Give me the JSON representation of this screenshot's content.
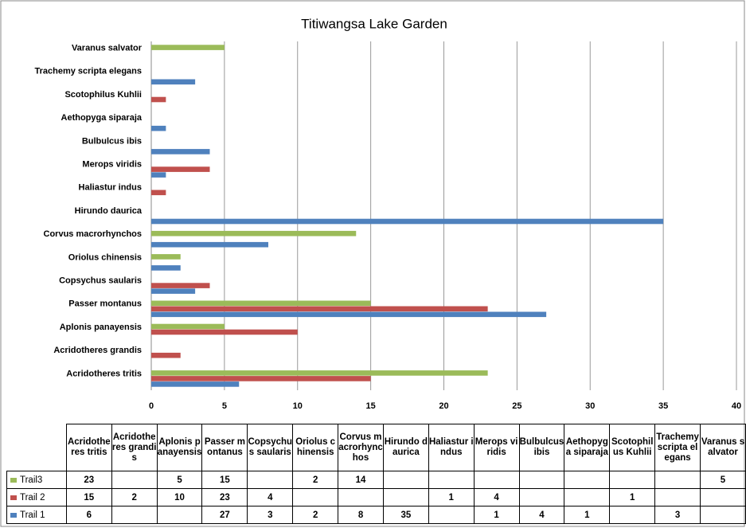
{
  "chart_data": {
    "type": "hbar",
    "title": "Titiwangsa Lake Garden",
    "categories": [
      "Acridotheres tritis",
      "Acridotheres grandis",
      "Aplonis panayensis",
      "Passer montanus",
      "Copsychus saularis",
      "Oriolus chinensis",
      "Corvus macrorhynchos",
      "Hirundo daurica",
      "Haliastur indus",
      "Merops viridis",
      "Bulbulcus ibis",
      "Aethopyga siparaja",
      "Scotophilus Kuhlii",
      "Trachemy scripta elegans",
      "Varanus salvator"
    ],
    "series": [
      {
        "name": "Trail3",
        "color": "#9bbb59",
        "values": [
          23,
          null,
          5,
          15,
          null,
          2,
          14,
          null,
          null,
          null,
          null,
          null,
          null,
          null,
          5
        ]
      },
      {
        "name": "Trail 2",
        "color": "#c0504d",
        "values": [
          15,
          2,
          10,
          23,
          4,
          null,
          null,
          null,
          1,
          4,
          null,
          null,
          1,
          null,
          null
        ]
      },
      {
        "name": "Trail 1",
        "color": "#4f81bd",
        "values": [
          6,
          null,
          null,
          27,
          3,
          2,
          8,
          35,
          null,
          1,
          4,
          1,
          null,
          3,
          null
        ]
      }
    ],
    "xlim": [
      0,
      40
    ],
    "xticks": [
      0,
      5,
      10,
      15,
      20,
      25,
      30,
      35,
      40
    ],
    "grid": true
  }
}
